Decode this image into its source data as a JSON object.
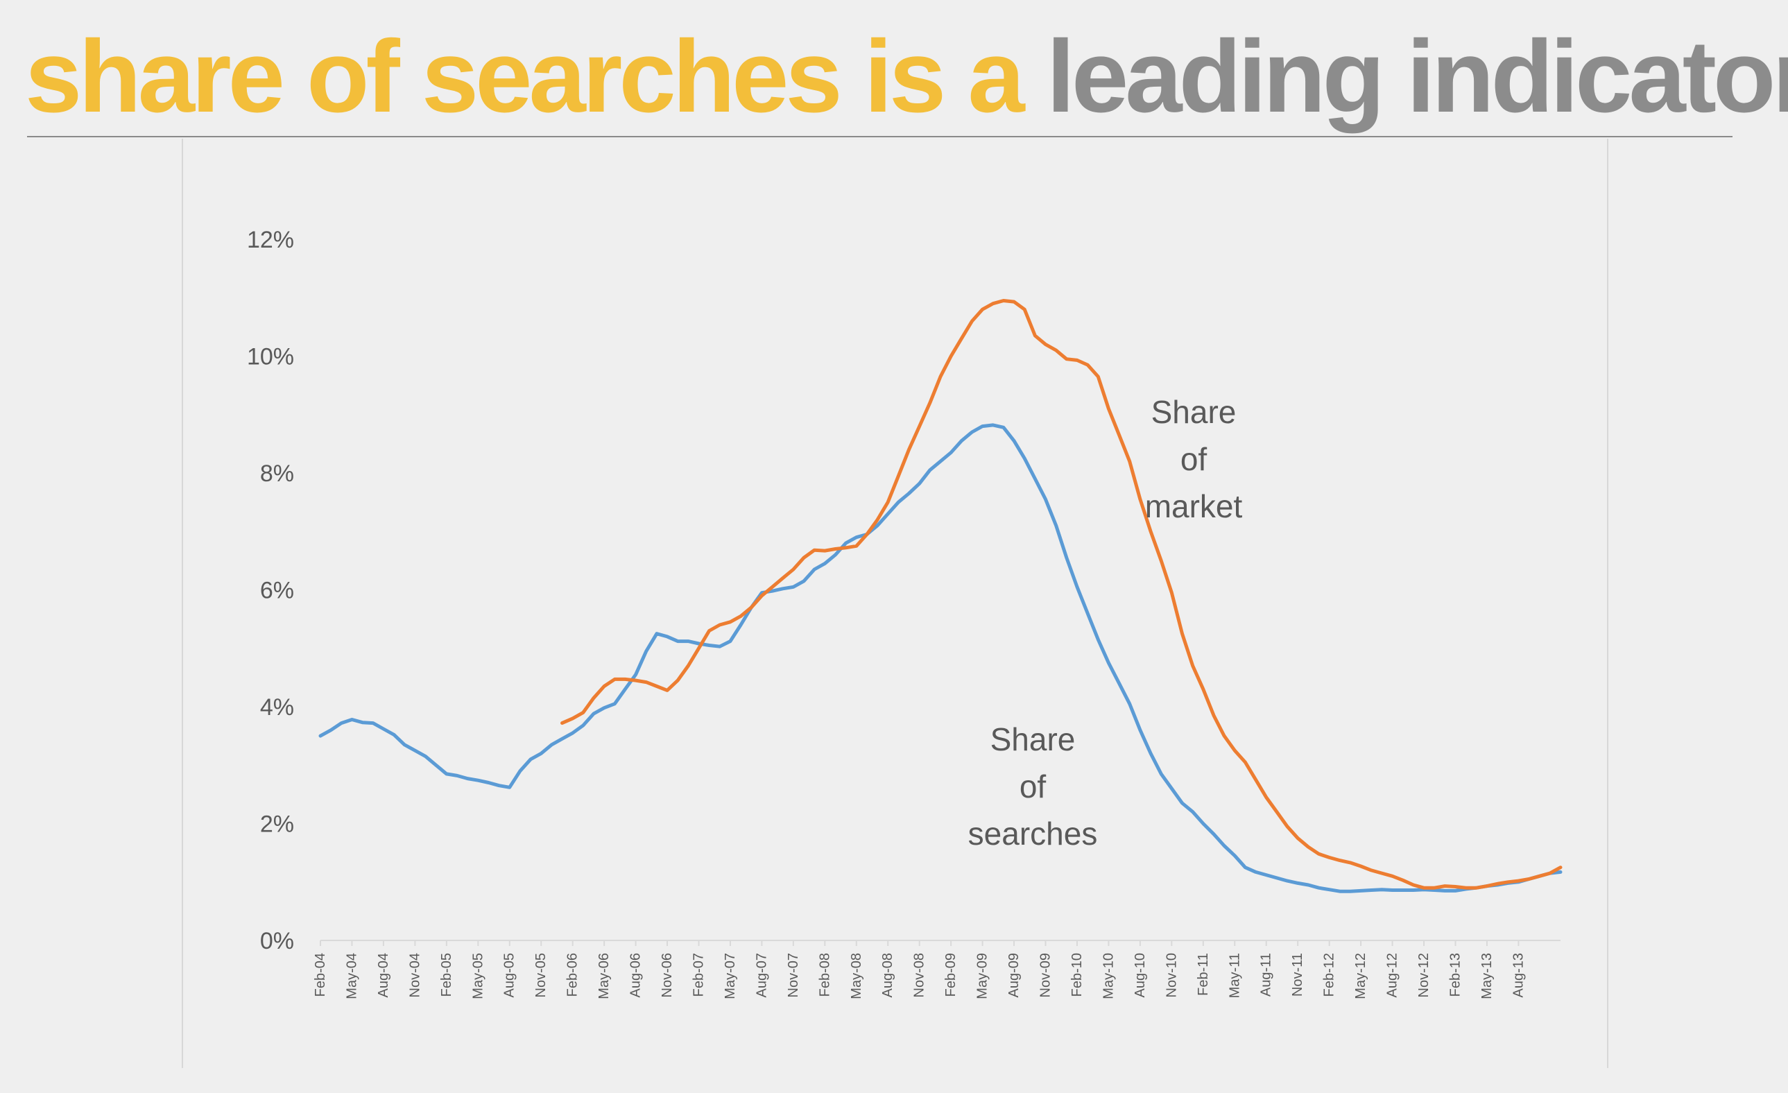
{
  "title": {
    "highlight": "share of searches is a",
    "rest": "leading indicator"
  },
  "colors": {
    "title_highlight": "#f3be3a",
    "title_rest": "#8c8c8c",
    "share_of_searches": "#5b9bd5",
    "share_of_market": "#ed7d31"
  },
  "chart_data": {
    "type": "line",
    "title": "",
    "xlabel": "",
    "ylabel": "",
    "ylim": [
      0,
      12
    ],
    "y_ticks": [
      "0%",
      "2%",
      "4%",
      "6%",
      "8%",
      "10%",
      "12%"
    ],
    "y_tick_values": [
      0,
      2,
      4,
      6,
      8,
      10,
      12
    ],
    "grid": false,
    "legend": "none",
    "x_tick_labels": [
      "Feb-04",
      "May-04",
      "Aug-04",
      "Nov-04",
      "Feb-05",
      "May-05",
      "Aug-05",
      "Nov-05",
      "Feb-06",
      "May-06",
      "Aug-06",
      "Nov-06",
      "Feb-07",
      "May-07",
      "Aug-07",
      "Nov-07",
      "Feb-08",
      "May-08",
      "Aug-08",
      "Nov-08",
      "Feb-09",
      "May-09",
      "Aug-09",
      "Nov-09",
      "Feb-10",
      "May-10",
      "Aug-10",
      "Nov-10",
      "Feb-11",
      "May-11",
      "Aug-11",
      "Nov-11",
      "Feb-12",
      "May-12",
      "Aug-12",
      "Nov-12",
      "Feb-13",
      "May-13",
      "Aug-13"
    ],
    "x_range": [
      "Feb-04",
      "Dec-13"
    ],
    "series": [
      {
        "name": "Share of searches",
        "annotation": [
          "Share",
          "of",
          "searches"
        ],
        "points": [
          [
            "Feb-04",
            3.5
          ],
          [
            "Mar-04",
            3.6
          ],
          [
            "Apr-04",
            3.72
          ],
          [
            "May-04",
            3.78
          ],
          [
            "Jun-04",
            3.73
          ],
          [
            "Jul-04",
            3.72
          ],
          [
            "Aug-04",
            3.62
          ],
          [
            "Sep-04",
            3.52
          ],
          [
            "Oct-04",
            3.35
          ],
          [
            "Nov-04",
            3.25
          ],
          [
            "Dec-04",
            3.15
          ],
          [
            "Jan-05",
            3.0
          ],
          [
            "Feb-05",
            2.85
          ],
          [
            "Mar-05",
            2.82
          ],
          [
            "Apr-05",
            2.77
          ],
          [
            "May-05",
            2.74
          ],
          [
            "Jun-05",
            2.7
          ],
          [
            "Jul-05",
            2.65
          ],
          [
            "Aug-05",
            2.62
          ],
          [
            "Sep-05",
            2.9
          ],
          [
            "Oct-05",
            3.1
          ],
          [
            "Nov-05",
            3.2
          ],
          [
            "Dec-05",
            3.35
          ],
          [
            "Jan-06",
            3.45
          ],
          [
            "Feb-06",
            3.55
          ],
          [
            "Mar-06",
            3.68
          ],
          [
            "Apr-06",
            3.88
          ],
          [
            "May-06",
            3.98
          ],
          [
            "Jun-06",
            4.05
          ],
          [
            "Jul-06",
            4.3
          ],
          [
            "Aug-06",
            4.55
          ],
          [
            "Sep-06",
            4.95
          ],
          [
            "Oct-06",
            5.25
          ],
          [
            "Nov-06",
            5.2
          ],
          [
            "Dec-06",
            5.12
          ],
          [
            "Jan-07",
            5.12
          ],
          [
            "Feb-07",
            5.08
          ],
          [
            "Mar-07",
            5.05
          ],
          [
            "Apr-07",
            5.03
          ],
          [
            "May-07",
            5.12
          ],
          [
            "Jun-07",
            5.4
          ],
          [
            "Jul-07",
            5.7
          ],
          [
            "Aug-07",
            5.95
          ],
          [
            "Sep-07",
            5.98
          ],
          [
            "Oct-07",
            6.02
          ],
          [
            "Nov-07",
            6.05
          ],
          [
            "Dec-07",
            6.15
          ],
          [
            "Jan-08",
            6.35
          ],
          [
            "Feb-08",
            6.45
          ],
          [
            "Mar-08",
            6.6
          ],
          [
            "Apr-08",
            6.8
          ],
          [
            "May-08",
            6.9
          ],
          [
            "Jun-08",
            6.95
          ],
          [
            "Jul-08",
            7.1
          ],
          [
            "Aug-08",
            7.3
          ],
          [
            "Sep-08",
            7.5
          ],
          [
            "Oct-08",
            7.65
          ],
          [
            "Nov-08",
            7.82
          ],
          [
            "Dec-08",
            8.05
          ],
          [
            "Jan-09",
            8.2
          ],
          [
            "Feb-09",
            8.35
          ],
          [
            "Mar-09",
            8.55
          ],
          [
            "Apr-09",
            8.7
          ],
          [
            "May-09",
            8.8
          ],
          [
            "Jun-09",
            8.82
          ],
          [
            "Jul-09",
            8.78
          ],
          [
            "Aug-09",
            8.55
          ],
          [
            "Sep-09",
            8.25
          ],
          [
            "Oct-09",
            7.9
          ],
          [
            "Nov-09",
            7.55
          ],
          [
            "Dec-09",
            7.1
          ],
          [
            "Jan-10",
            6.55
          ],
          [
            "Feb-10",
            6.05
          ],
          [
            "Mar-10",
            5.6
          ],
          [
            "Apr-10",
            5.15
          ],
          [
            "May-10",
            4.75
          ],
          [
            "Jun-10",
            4.4
          ],
          [
            "Jul-10",
            4.05
          ],
          [
            "Aug-10",
            3.6
          ],
          [
            "Sep-10",
            3.2
          ],
          [
            "Oct-10",
            2.85
          ],
          [
            "Nov-10",
            2.6
          ],
          [
            "Dec-10",
            2.35
          ],
          [
            "Jan-11",
            2.2
          ],
          [
            "Feb-11",
            2.0
          ],
          [
            "Mar-11",
            1.82
          ],
          [
            "Apr-11",
            1.62
          ],
          [
            "May-11",
            1.45
          ],
          [
            "Jun-11",
            1.25
          ],
          [
            "Jul-11",
            1.17
          ],
          [
            "Aug-11",
            1.12
          ],
          [
            "Sep-11",
            1.07
          ],
          [
            "Oct-11",
            1.02
          ],
          [
            "Nov-11",
            0.98
          ],
          [
            "Dec-11",
            0.95
          ],
          [
            "Jan-12",
            0.9
          ],
          [
            "Feb-12",
            0.87
          ],
          [
            "Mar-12",
            0.84
          ],
          [
            "Apr-12",
            0.84
          ],
          [
            "May-12",
            0.85
          ],
          [
            "Jun-12",
            0.86
          ],
          [
            "Jul-12",
            0.87
          ],
          [
            "Aug-12",
            0.86
          ],
          [
            "Sep-12",
            0.86
          ],
          [
            "Oct-12",
            0.86
          ],
          [
            "Nov-12",
            0.87
          ],
          [
            "Dec-12",
            0.86
          ],
          [
            "Jan-13",
            0.85
          ],
          [
            "Feb-13",
            0.85
          ],
          [
            "Mar-13",
            0.88
          ],
          [
            "Apr-13",
            0.9
          ],
          [
            "May-13",
            0.93
          ],
          [
            "Jun-13",
            0.95
          ],
          [
            "Jul-13",
            0.98
          ],
          [
            "Aug-13",
            1.0
          ],
          [
            "Sep-13",
            1.05
          ],
          [
            "Oct-13",
            1.1
          ],
          [
            "Nov-13",
            1.15
          ],
          [
            "Dec-13",
            1.17
          ]
        ]
      },
      {
        "name": "Share of market",
        "annotation": [
          "Share",
          "of",
          "market"
        ],
        "points": [
          [
            "Jan-06",
            3.72
          ],
          [
            "Feb-06",
            3.8
          ],
          [
            "Mar-06",
            3.9
          ],
          [
            "Apr-06",
            4.15
          ],
          [
            "May-06",
            4.35
          ],
          [
            "Jun-06",
            4.47
          ],
          [
            "Jul-06",
            4.47
          ],
          [
            "Aug-06",
            4.45
          ],
          [
            "Sep-06",
            4.42
          ],
          [
            "Oct-06",
            4.35
          ],
          [
            "Nov-06",
            4.28
          ],
          [
            "Dec-06",
            4.45
          ],
          [
            "Jan-07",
            4.7
          ],
          [
            "Feb-07",
            5.0
          ],
          [
            "Mar-07",
            5.3
          ],
          [
            "Apr-07",
            5.4
          ],
          [
            "May-07",
            5.45
          ],
          [
            "Jun-07",
            5.55
          ],
          [
            "Jul-07",
            5.7
          ],
          [
            "Aug-07",
            5.9
          ],
          [
            "Sep-07",
            6.05
          ],
          [
            "Oct-07",
            6.2
          ],
          [
            "Nov-07",
            6.35
          ],
          [
            "Dec-07",
            6.55
          ],
          [
            "Jan-08",
            6.68
          ],
          [
            "Feb-08",
            6.67
          ],
          [
            "Mar-08",
            6.7
          ],
          [
            "Apr-08",
            6.72
          ],
          [
            "May-08",
            6.75
          ],
          [
            "Jun-08",
            6.95
          ],
          [
            "Jul-08",
            7.2
          ],
          [
            "Aug-08",
            7.5
          ],
          [
            "Sep-08",
            7.95
          ],
          [
            "Oct-08",
            8.4
          ],
          [
            "Nov-08",
            8.8
          ],
          [
            "Dec-08",
            9.2
          ],
          [
            "Jan-09",
            9.65
          ],
          [
            "Feb-09",
            10.0
          ],
          [
            "Mar-09",
            10.3
          ],
          [
            "Apr-09",
            10.6
          ],
          [
            "May-09",
            10.8
          ],
          [
            "Jun-09",
            10.9
          ],
          [
            "Jul-09",
            10.95
          ],
          [
            "Aug-09",
            10.93
          ],
          [
            "Sep-09",
            10.8
          ],
          [
            "Oct-09",
            10.35
          ],
          [
            "Nov-09",
            10.2
          ],
          [
            "Dec-09",
            10.1
          ],
          [
            "Jan-10",
            9.95
          ],
          [
            "Feb-10",
            9.93
          ],
          [
            "Mar-10",
            9.85
          ],
          [
            "Apr-10",
            9.65
          ],
          [
            "May-10",
            9.1
          ],
          [
            "Jun-10",
            8.65
          ],
          [
            "Jul-10",
            8.2
          ],
          [
            "Aug-10",
            7.55
          ],
          [
            "Sep-10",
            7.0
          ],
          [
            "Oct-10",
            6.5
          ],
          [
            "Nov-10",
            5.95
          ],
          [
            "Dec-10",
            5.25
          ],
          [
            "Jan-11",
            4.7
          ],
          [
            "Feb-11",
            4.3
          ],
          [
            "Mar-11",
            3.85
          ],
          [
            "Apr-11",
            3.5
          ],
          [
            "May-11",
            3.25
          ],
          [
            "Jun-11",
            3.05
          ],
          [
            "Jul-11",
            2.75
          ],
          [
            "Aug-11",
            2.45
          ],
          [
            "Sep-11",
            2.2
          ],
          [
            "Oct-11",
            1.95
          ],
          [
            "Nov-11",
            1.75
          ],
          [
            "Dec-11",
            1.6
          ],
          [
            "Jan-12",
            1.48
          ],
          [
            "Feb-12",
            1.42
          ],
          [
            "Mar-12",
            1.37
          ],
          [
            "Apr-12",
            1.33
          ],
          [
            "May-12",
            1.27
          ],
          [
            "Jun-12",
            1.2
          ],
          [
            "Jul-12",
            1.15
          ],
          [
            "Aug-12",
            1.1
          ],
          [
            "Sep-12",
            1.03
          ],
          [
            "Oct-12",
            0.95
          ],
          [
            "Nov-12",
            0.9
          ],
          [
            "Dec-12",
            0.9
          ],
          [
            "Jan-13",
            0.93
          ],
          [
            "Feb-13",
            0.92
          ],
          [
            "Mar-13",
            0.9
          ],
          [
            "Apr-13",
            0.9
          ],
          [
            "May-13",
            0.93
          ],
          [
            "Jun-13",
            0.97
          ],
          [
            "Jul-13",
            1.0
          ],
          [
            "Aug-13",
            1.02
          ],
          [
            "Sep-13",
            1.05
          ],
          [
            "Oct-13",
            1.1
          ],
          [
            "Nov-13",
            1.15
          ],
          [
            "Dec-13",
            1.25
          ]
        ]
      }
    ]
  }
}
